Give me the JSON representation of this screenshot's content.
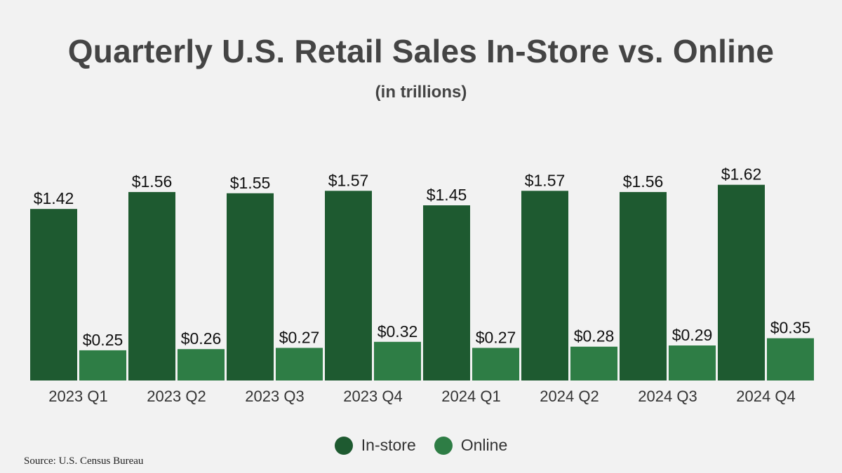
{
  "chart_data": {
    "type": "bar",
    "title": "Quarterly U.S. Retail Sales In-Store vs. Online",
    "subtitle": "(in trillions)",
    "categories": [
      "2023 Q1",
      "2023 Q2",
      "2023 Q3",
      "2023 Q4",
      "2024 Q1",
      "2024 Q2",
      "2024 Q3",
      "2024 Q4"
    ],
    "series": [
      {
        "name": "In-store",
        "color": "#1e5a30",
        "values": [
          1.42,
          1.56,
          1.55,
          1.57,
          1.45,
          1.57,
          1.56,
          1.62
        ],
        "labels": [
          "$1.42",
          "$1.56",
          "$1.55",
          "$1.57",
          "$1.45",
          "$1.57",
          "$1.56",
          "$1.62"
        ]
      },
      {
        "name": "Online",
        "color": "#2e7d45",
        "values": [
          0.25,
          0.26,
          0.27,
          0.32,
          0.27,
          0.28,
          0.29,
          0.35
        ],
        "labels": [
          "$0.25",
          "$0.26",
          "$0.27",
          "$0.32",
          "$0.27",
          "$0.28",
          "$0.29",
          "$0.35"
        ]
      }
    ],
    "ylim": [
      0,
      1.7
    ],
    "grid": false,
    "legend_position": "bottom-center"
  },
  "source": "Source: U.S. Census Bureau"
}
